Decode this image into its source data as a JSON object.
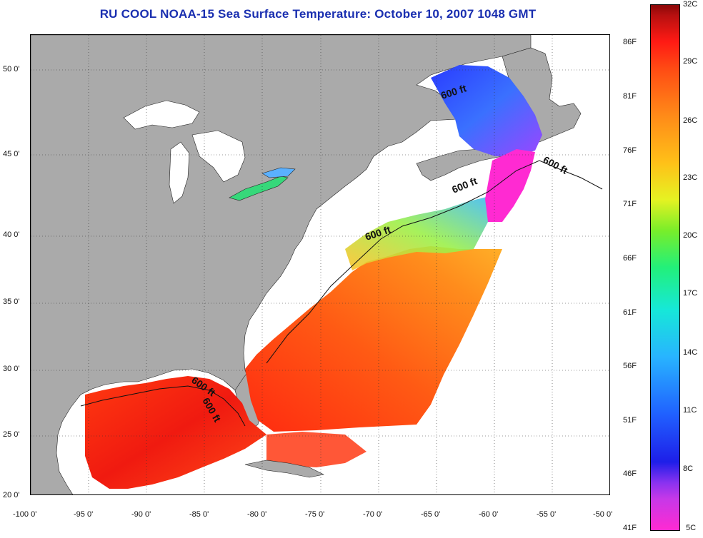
{
  "title": "RU COOL  NOAA-15  Sea Surface Temperature:  October 10, 2007 1048 GMT",
  "map": {
    "lon_range": [
      -100,
      -50
    ],
    "lat_range": [
      20,
      52.4
    ],
    "lon_ticks": [
      "-100 0'",
      "-95 0'",
      "-90 0'",
      "-85 0'",
      "-80 0'",
      "-75 0'",
      "-70 0'",
      "-65 0'",
      "-60 0'",
      "-55 0'",
      "-50 0'"
    ],
    "lat_ticks": [
      "50 0'",
      "45 0'",
      "40 0'",
      "35 0'",
      "30 0'",
      "25 0'",
      "20 0'"
    ],
    "contour_labels": [
      "600 ft",
      "600 ft",
      "600 ft",
      "600 ft",
      "600 ft",
      "600 ft"
    ],
    "grid": "dotted",
    "colors": {
      "land": "#aaaaaa",
      "no_data": "#ffffff",
      "warm": "#ff3a12",
      "mid": "#ff8a1a",
      "cold": "#2a3cff",
      "pink": "#ff2ad2"
    }
  },
  "colorbar": {
    "fahrenheit_labels": [
      "86F",
      "81F",
      "76F",
      "71F",
      "66F",
      "61F",
      "56F",
      "51F",
      "46F",
      "41F"
    ],
    "celsius_labels": [
      "32C",
      "29C",
      "26C",
      "23C",
      "20C",
      "17C",
      "14C",
      "11C",
      "8C",
      "5C"
    ]
  }
}
